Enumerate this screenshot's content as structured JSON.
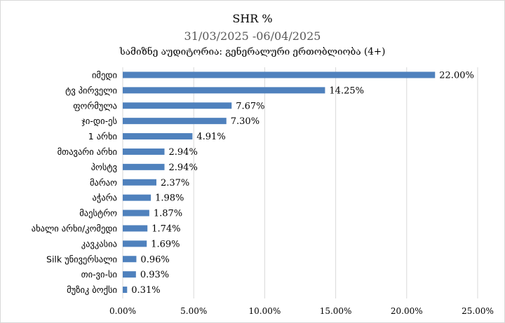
{
  "chart_data": {
    "type": "bar",
    "orientation": "horizontal",
    "title": "SHR %",
    "subtitle": "31/03/2025 -06/04/2025",
    "subtitle2": "სამიზნე აუდიტორია: გენერალური ერთობლიობა (4+)",
    "categories": [
      "იმედი",
      "ტვ პირველი",
      "ფორმულა",
      "ჯი-დი-ეს",
      "1 არხი",
      "მთავარი არხი",
      "პოსტვ",
      "მარაო",
      "აჭარა",
      "მაესტრო",
      "ახალი არხი/კომედი",
      "კავკასია",
      "Silk უნივერსალი",
      "თი-ვი-სი",
      "მუზიკ ბოქსი"
    ],
    "values": [
      22.0,
      14.25,
      7.67,
      7.3,
      4.91,
      2.94,
      2.94,
      2.37,
      1.98,
      1.87,
      1.74,
      1.69,
      0.96,
      0.93,
      0.31
    ],
    "value_labels": [
      "22.00%",
      "14.25%",
      "7.67%",
      "7.30%",
      "4.91%",
      "2.94%",
      "2.94%",
      "2.37%",
      "1.98%",
      "1.87%",
      "1.74%",
      "1.69%",
      "0.96%",
      "0.93%",
      "0.31%"
    ],
    "xlim": [
      0,
      25
    ],
    "x_ticks": [
      0,
      5,
      10,
      15,
      20,
      25
    ],
    "x_tick_labels": [
      "0.00%",
      "5.00%",
      "10.00%",
      "15.00%",
      "20.00%",
      "25.00%"
    ],
    "grid": "vertical",
    "bar_color": "#4f81bd",
    "grid_color": "#d9d9d9"
  }
}
